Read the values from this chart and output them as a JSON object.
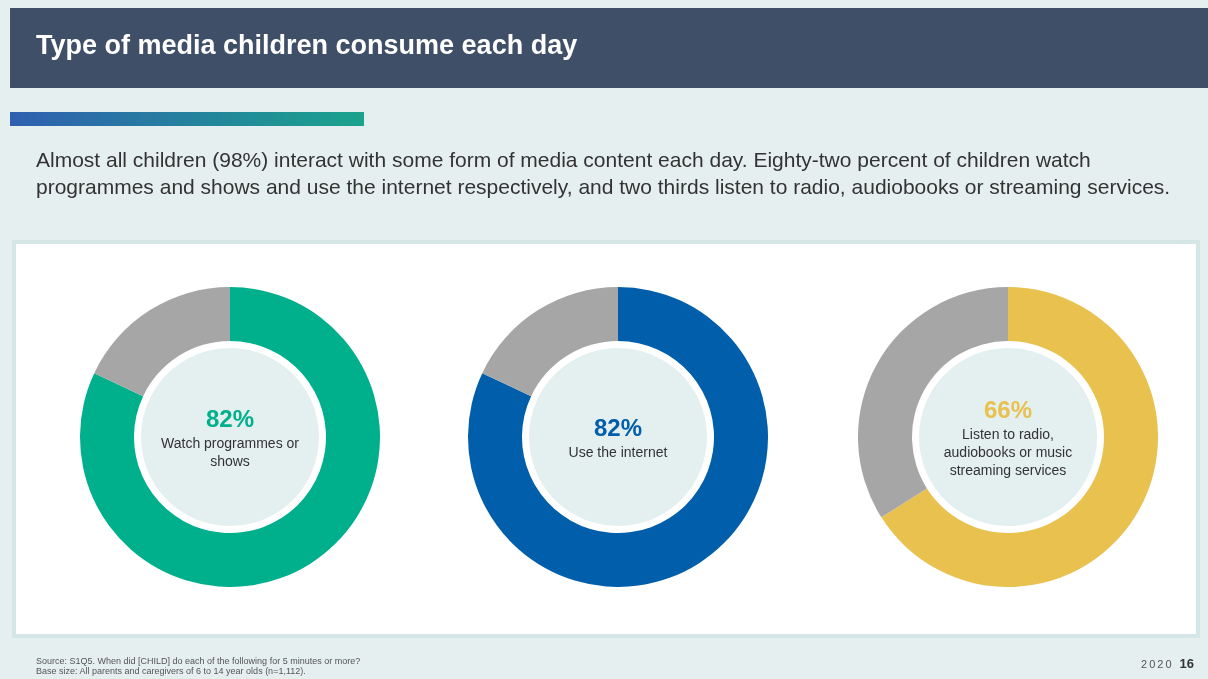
{
  "chart_data": [
    {
      "type": "donut",
      "title": "Type of media children consume each day",
      "subtitle": "Almost all children (98%) interact with some form of media content each day. Eighty-two percent of children watch programmes and shows and use the internet respectively, and two thirds listen to radio, audiobooks or streaming services.",
      "categories": [
        "Watch programmes or shows",
        null
      ],
      "values": [
        82,
        18
      ],
      "colors": [
        "#00b08c",
        "#a6a6a6"
      ],
      "value_labels": [
        "82%",
        null
      ],
      "annotations": [
        "Source: S1Q5. When did [CHILD] do each of the following for 5 minutes or more?",
        "Base size: All parents and caregivers of 6 to 14 year olds (n=1,112).",
        "2020",
        "16"
      ]
    },
    {
      "type": "donut",
      "categories": [
        "Use the internet",
        null
      ],
      "values": [
        82,
        18
      ],
      "colors": [
        "#005eaa",
        "#a6a6a6"
      ],
      "value_labels": [
        "82%",
        null
      ]
    },
    {
      "type": "donut",
      "categories": [
        "Listen to radio, audiobooks or music streaming services",
        null
      ],
      "values": [
        66,
        34
      ],
      "colors": [
        "#e8c14f",
        "#a6a6a6"
      ],
      "value_labels": [
        "66%",
        null
      ]
    }
  ]
}
